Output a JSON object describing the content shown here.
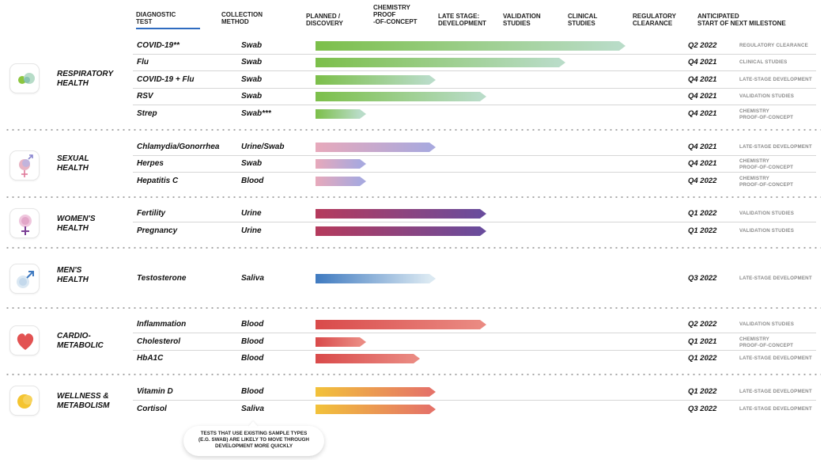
{
  "headers": {
    "diagnostic_test": "DIAGNOSTIC\nTEST",
    "collection_method": "COLLECTION\nMETHOD",
    "stages": [
      "PLANNED /\nDISCOVERY",
      "CHEMISTRY\nPROOF\n-OF-CONCEPT",
      "LATE STAGE:\nDEVELOPMENT",
      "VALIDATION\nSTUDIES",
      "CLINICAL\nSTUDIES",
      "REGULATORY\nCLEARANCE"
    ],
    "milestone": "ANTICIPATED\nSTART OF NEXT MILESTONE"
  },
  "categories": [
    {
      "name": "RESPIRATORY\nHEALTH",
      "icon": "lungs-icon",
      "color_from": "#7cbf4a",
      "color_to": "#b9dcc8",
      "tests": [
        {
          "test": "COVID-19**",
          "method": "Swab",
          "progress": 0.98,
          "quarter": "Q2 2022",
          "milestone": "REGULATORY CLEARANCE"
        },
        {
          "test": "Flu",
          "method": "Swab",
          "progress": 0.79,
          "quarter": "Q4 2021",
          "milestone": "CLINICAL STUDIES"
        },
        {
          "test": "COVID-19 + Flu",
          "method": "Swab",
          "progress": 0.38,
          "quarter": "Q4 2021",
          "milestone": "LATE-STAGE DEVELOPMENT"
        },
        {
          "test": "RSV",
          "method": "Swab",
          "progress": 0.54,
          "quarter": "Q4 2021",
          "milestone": "VALIDATION STUDIES"
        },
        {
          "test": "Strep",
          "method": "Swab***",
          "progress": 0.16,
          "quarter": "Q4 2021",
          "milestone": "CHEMISTRY\nPROOF-OF-CONCEPT"
        }
      ]
    },
    {
      "name": "SEXUAL\nHEALTH",
      "icon": "gender-symbols-icon",
      "color_from": "#e7a9bb",
      "color_to": "#a9a9de",
      "tests": [
        {
          "test": "Chlamydia/Gonorrhea",
          "method": "Urine/Swab",
          "progress": 0.38,
          "quarter": "Q4 2021",
          "milestone": "LATE-STAGE DEVELOPMENT"
        },
        {
          "test": "Herpes",
          "method": "Swab",
          "progress": 0.16,
          "quarter": "Q4 2021",
          "milestone": "CHEMISTRY\nPROOF-OF-CONCEPT"
        },
        {
          "test": "Hepatitis C",
          "method": "Blood",
          "progress": 0.16,
          "quarter": "Q4 2022",
          "milestone": "CHEMISTRY\nPROOF-OF-CONCEPT"
        }
      ]
    },
    {
      "name": "WOMEN'S\nHEALTH",
      "icon": "female-symbol-icon",
      "color_from": "#b53a5c",
      "color_to": "#6a4c9c",
      "tests": [
        {
          "test": "Fertility",
          "method": "Urine",
          "progress": 0.54,
          "quarter": "Q1 2022",
          "milestone": "VALIDATION STUDIES"
        },
        {
          "test": "Pregnancy",
          "method": "Urine",
          "progress": 0.54,
          "quarter": "Q1 2022",
          "milestone": "VALIDATION STUDIES"
        }
      ]
    },
    {
      "name": "MEN'S\nHEALTH",
      "icon": "male-symbol-icon",
      "color_from": "#3f7ac0",
      "color_to": "#dbe9f2",
      "tests": [
        {
          "test": "Testosterone",
          "method": "Saliva",
          "progress": 0.38,
          "quarter": "Q3 2022",
          "milestone": "LATE-STAGE DEVELOPMENT"
        }
      ]
    },
    {
      "name": "CARDIO-\nMETABOLIC",
      "icon": "heart-icon",
      "color_from": "#d94a4a",
      "color_to": "#ea8a82",
      "tests": [
        {
          "test": "Inflammation",
          "method": "Blood",
          "progress": 0.54,
          "quarter": "Q2 2022",
          "milestone": "VALIDATION STUDIES"
        },
        {
          "test": "Cholesterol",
          "method": "Blood",
          "progress": 0.16,
          "quarter": "Q1 2021",
          "milestone": "CHEMISTRY\nPROOF-OF-CONCEPT"
        },
        {
          "test": "HbA1C",
          "method": "Blood",
          "progress": 0.33,
          "quarter": "Q1 2022",
          "milestone": "LATE-STAGE DEVELOPMENT"
        }
      ]
    },
    {
      "name": "WELLNESS &\nMETABOLISM",
      "icon": "sun-icon",
      "color_from": "#f2c23a",
      "color_to": "#e57368",
      "tests": [
        {
          "test": "Vitamin D",
          "method": "Blood",
          "progress": 0.38,
          "quarter": "Q1 2022",
          "milestone": "LATE-STAGE DEVELOPMENT"
        },
        {
          "test": "Cortisol",
          "method": "Saliva",
          "progress": 0.38,
          "quarter": "Q3 2022",
          "milestone": "LATE-STAGE DEVELOPMENT"
        }
      ]
    }
  ],
  "note": "TESTS THAT USE EXISTING SAMPLE TYPES\n(E.G. SWAB) ARE LIKELY TO MOVE THROUGH\nDEVELOPMENT MORE QUICKLY"
}
